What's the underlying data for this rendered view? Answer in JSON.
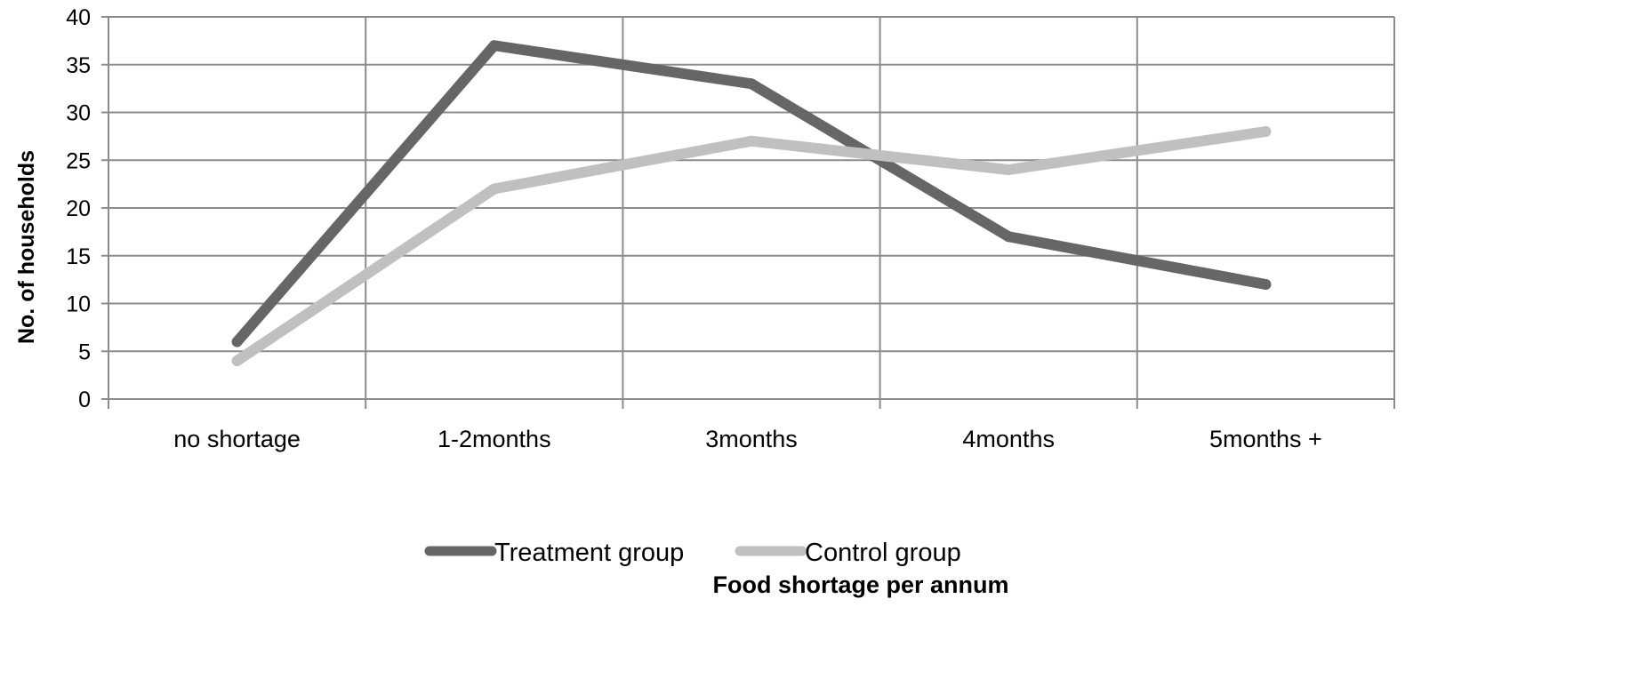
{
  "chart_data": {
    "type": "line",
    "categories": [
      "no shortage",
      "1-2months",
      "3months",
      "4months",
      "5months +"
    ],
    "series": [
      {
        "name": "Treatment group",
        "values": [
          6,
          37,
          33,
          17,
          12
        ],
        "color": "#666666"
      },
      {
        "name": "Control group",
        "values": [
          4,
          22,
          27,
          24,
          28
        ],
        "color": "#c0c0c0"
      }
    ],
    "xlabel": "Food shortage per annum",
    "ylabel": "No. of households",
    "ylim": [
      0,
      40
    ],
    "yticks": [
      0,
      5,
      10,
      15,
      20,
      25,
      30,
      35,
      40
    ],
    "grid": true,
    "legend_position": "bottom"
  }
}
